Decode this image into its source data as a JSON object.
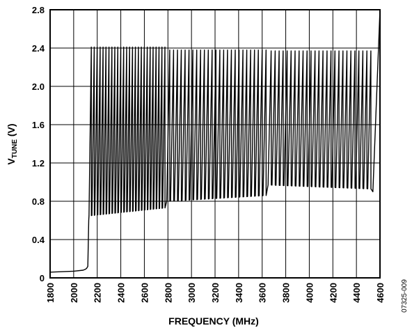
{
  "chart_data": {
    "type": "line",
    "title": "",
    "xlabel": "FREQUENCY (MHz)",
    "ylabel_main": "V",
    "ylabel_sub": "TUNE",
    "ylabel_unit": " (V)",
    "xlim": [
      1800,
      4600
    ],
    "ylim": [
      0,
      2.8
    ],
    "xticks": [
      "1800",
      "2000",
      "2200",
      "2400",
      "2600",
      "2800",
      "3000",
      "3200",
      "3400",
      "3600",
      "3800",
      "4000",
      "4200",
      "4400",
      "4600"
    ],
    "yticks": [
      "0",
      "0.4",
      "0.8",
      "1.2",
      "1.6",
      "2.0",
      "2.4",
      "2.8"
    ],
    "grid": true,
    "series": [
      {
        "color": "#000000",
        "low_segment": {
          "x": [
            1800,
            2000,
            2080,
            2100,
            2110,
            2120,
            2128
          ],
          "y": [
            0.06,
            0.07,
            0.08,
            0.09,
            0.1,
            0.12,
            0.6
          ]
        },
        "sawtooth": {
          "bands": [
            {
              "x_start": 2130,
              "x_end": 2780,
              "teeth": 26,
              "top": 2.41,
              "bottom_start": 0.65,
              "bottom_end": 0.73
            },
            {
              "x_start": 2790,
              "x_end": 3640,
              "teeth": 26,
              "top": 2.38,
              "bottom_start": 0.8,
              "bottom_end": 0.86
            },
            {
              "x_start": 3650,
              "x_end": 4530,
              "teeth": 26,
              "top": 2.37,
              "bottom_start": 0.97,
              "bottom_end": 0.93
            }
          ]
        },
        "final_rise": {
          "x": [
            4540,
            4600
          ],
          "y": [
            0.9,
            2.8
          ]
        }
      }
    ]
  },
  "figure_id": "07325-009"
}
